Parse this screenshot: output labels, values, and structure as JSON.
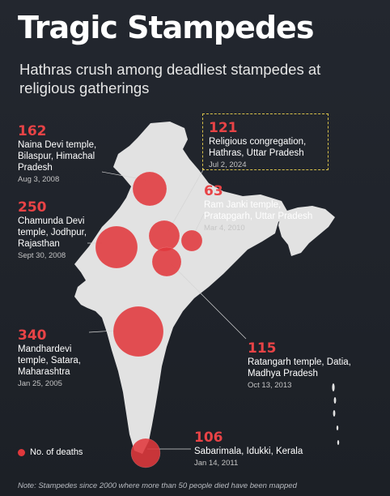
{
  "title": "Tragic Stampedes",
  "subtitle": "Hathras crush among deadliest stampedes at religious gatherings",
  "legend": {
    "label": "No. of deaths"
  },
  "note": "Note: Stampedes since 2000 where more than 50 people died have been mapped",
  "colors": {
    "circle": "#e0383c",
    "land": "#e2e2e2",
    "accent": "#e84346",
    "highlight_box": "#d9c24a"
  },
  "events": [
    {
      "id": "naina-devi",
      "deaths": "162",
      "place": "Naina Devi temple, Bilaspur, Himachal Pradesh",
      "date": "Aug 3, 2008"
    },
    {
      "id": "hathras",
      "deaths": "121",
      "place": "Religious congregation, Hathras, Uttar Pradesh",
      "date": "Jul 2, 2024"
    },
    {
      "id": "chamunda-devi",
      "deaths": "250",
      "place": "Chamunda Devi temple, Jodhpur, Rajasthan",
      "date": "Sept 30, 2008"
    },
    {
      "id": "ram-janki",
      "deaths": "63",
      "place": "Ram Janki temple, Pratapgarh, Uttar Pradesh",
      "date": "Mar 4, 2010"
    },
    {
      "id": "mandhardevi",
      "deaths": "340",
      "place": "Mandhardevi temple, Satara, Maharashtra",
      "date": "Jan 25, 2005"
    },
    {
      "id": "ratangarh",
      "deaths": "115",
      "place": "Ratangarh temple, Datia, Madhya Pradesh",
      "date": "Oct 13, 2013"
    },
    {
      "id": "sabarimala",
      "deaths": "106",
      "place": "Sabarimala, Idukki, Kerala",
      "date": "Jan 14, 2011"
    }
  ]
}
